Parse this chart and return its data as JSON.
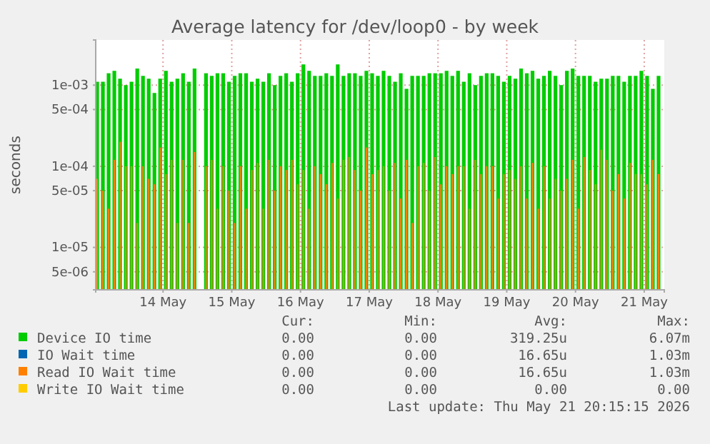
{
  "chart_data": {
    "type": "bar",
    "title": "Average latency for /dev/loop0 - by week",
    "ylabel": "seconds",
    "log": true,
    "grid": true,
    "legend": "bottom",
    "x": [
      "2026-05-13T01:00",
      "2026-05-13T03:00",
      "2026-05-13T05:00",
      "2026-05-13T07:00",
      "2026-05-13T09:00",
      "2026-05-13T11:00",
      "2026-05-13T13:00",
      "2026-05-13T15:00",
      "2026-05-13T17:00",
      "2026-05-13T19:00",
      "2026-05-13T21:00",
      "2026-05-13T23:00",
      "2026-05-14T01:00",
      "2026-05-14T03:00",
      "2026-05-14T05:00",
      "2026-05-14T07:00",
      "2026-05-14T09:00",
      "2026-05-14T11:00",
      "2026-05-14T13:00",
      "2026-05-14T15:00",
      "2026-05-14T17:00",
      "2026-05-14T19:00",
      "2026-05-14T21:00",
      "2026-05-14T23:00",
      "2026-05-15T01:00",
      "2026-05-15T03:00",
      "2026-05-15T05:00",
      "2026-05-15T07:00",
      "2026-05-15T09:00",
      "2026-05-15T11:00",
      "2026-05-15T13:00",
      "2026-05-15T15:00",
      "2026-05-15T17:00",
      "2026-05-15T19:00",
      "2026-05-15T21:00",
      "2026-05-15T23:00",
      "2026-05-16T01:00",
      "2026-05-16T03:00",
      "2026-05-16T05:00",
      "2026-05-16T07:00",
      "2026-05-16T09:00",
      "2026-05-16T11:00",
      "2026-05-16T13:00",
      "2026-05-16T15:00",
      "2026-05-16T17:00",
      "2026-05-16T19:00",
      "2026-05-16T21:00",
      "2026-05-16T23:00",
      "2026-05-17T01:00",
      "2026-05-17T03:00",
      "2026-05-17T05:00",
      "2026-05-17T07:00",
      "2026-05-17T09:00",
      "2026-05-17T11:00",
      "2026-05-17T13:00",
      "2026-05-17T15:00",
      "2026-05-17T17:00",
      "2026-05-17T19:00",
      "2026-05-17T21:00",
      "2026-05-17T23:00",
      "2026-05-18T01:00",
      "2026-05-18T03:00",
      "2026-05-18T05:00",
      "2026-05-18T07:00",
      "2026-05-18T09:00",
      "2026-05-18T11:00",
      "2026-05-18T13:00",
      "2026-05-18T15:00",
      "2026-05-18T17:00",
      "2026-05-18T19:00",
      "2026-05-18T21:00",
      "2026-05-18T23:00",
      "2026-05-19T01:00",
      "2026-05-19T03:00",
      "2026-05-19T05:00",
      "2026-05-19T07:00",
      "2026-05-19T09:00",
      "2026-05-19T11:00",
      "2026-05-19T13:00",
      "2026-05-19T15:00",
      "2026-05-19T17:00",
      "2026-05-19T19:00",
      "2026-05-19T21:00",
      "2026-05-19T23:00",
      "2026-05-20T01:00",
      "2026-05-20T03:00",
      "2026-05-20T05:00",
      "2026-05-20T07:00",
      "2026-05-20T09:00",
      "2026-05-20T11:00",
      "2026-05-20T13:00",
      "2026-05-20T15:00",
      "2026-05-20T17:00",
      "2026-05-20T19:00",
      "2026-05-20T21:00",
      "2026-05-20T23:00",
      "2026-05-21T01:00",
      "2026-05-21T03:00",
      "2026-05-21T05:00"
    ],
    "xlim": [
      "2026-05-13T00:30",
      "2026-05-21T07:00"
    ],
    "xticks": [
      {
        "value": "2026-05-14",
        "label": "14 May"
      },
      {
        "value": "2026-05-15",
        "label": "15 May"
      },
      {
        "value": "2026-05-16",
        "label": "16 May"
      },
      {
        "value": "2026-05-17",
        "label": "17 May"
      },
      {
        "value": "2026-05-18",
        "label": "18 May"
      },
      {
        "value": "2026-05-19",
        "label": "19 May"
      },
      {
        "value": "2026-05-20",
        "label": "20 May"
      },
      {
        "value": "2026-05-21",
        "label": "21 May"
      }
    ],
    "ylim": [
      3e-06,
      0.0036
    ],
    "yticks": [
      {
        "value": 5e-06,
        "label": "5e-06"
      },
      {
        "value": 1e-05,
        "label": "1e-05"
      },
      {
        "value": 5e-05,
        "label": "5e-05"
      },
      {
        "value": 0.0001,
        "label": "1e-04"
      },
      {
        "value": 0.0005,
        "label": "5e-04"
      },
      {
        "value": 0.001,
        "label": "1e-03"
      }
    ],
    "series": [
      {
        "name": "Device IO time",
        "color": "#00cc00",
        "values": [
          0.0011,
          0.0011,
          0.0014,
          0.0015,
          0.0012,
          0.001,
          0.0011,
          0.0016,
          0.0013,
          0.0012,
          0.0008,
          0.0012,
          0.0015,
          0.0011,
          0.0012,
          0.0014,
          0.0011,
          0.0016,
          null,
          0.0014,
          0.0013,
          0.0014,
          0.0014,
          0.0011,
          0.0013,
          0.0014,
          0.0014,
          0.0011,
          0.0012,
          0.0011,
          0.0014,
          0.001,
          0.0013,
          0.0014,
          0.0011,
          0.0014,
          0.0018,
          0.0015,
          0.0013,
          0.0013,
          0.0014,
          0.0013,
          0.0018,
          0.0013,
          0.0014,
          0.0014,
          0.0013,
          0.0015,
          0.0014,
          0.0013,
          0.0015,
          0.0013,
          0.0011,
          0.0014,
          0.0009,
          0.0013,
          0.0013,
          0.0013,
          0.0014,
          0.0014,
          0.0014,
          0.0015,
          0.0013,
          0.0015,
          0.0011,
          0.0014,
          0.001,
          0.0013,
          0.0014,
          0.0014,
          0.0013,
          0.0011,
          0.0013,
          0.0012,
          0.0016,
          0.0014,
          0.0015,
          0.0012,
          0.0013,
          0.0015,
          0.0013,
          0.001,
          0.0015,
          0.0016,
          0.0013,
          0.0013,
          0.0013,
          0.0011,
          0.0012,
          0.0012,
          0.0013,
          0.0013,
          0.0011,
          0.0013,
          0.0013,
          0.0015,
          0.0013,
          0.0009,
          0.0013
        ]
      },
      {
        "name": "IO Wait time",
        "color": "#0066b3",
        "values": [
          null,
          null,
          null,
          null,
          null,
          null,
          null,
          null,
          null,
          null,
          null,
          null,
          null,
          null,
          null,
          null,
          null,
          null,
          null,
          null,
          null,
          null,
          null,
          null,
          null,
          null,
          null,
          null,
          null,
          null,
          null,
          null,
          null,
          null,
          null,
          null,
          null,
          null,
          null,
          null,
          null,
          null,
          null,
          null,
          null,
          null,
          null,
          null,
          null,
          null,
          null,
          null,
          null,
          null,
          null,
          null,
          null,
          null,
          null,
          null,
          null,
          null,
          null,
          null,
          null,
          null,
          null,
          null,
          null,
          null,
          null,
          null,
          null,
          null,
          null,
          null,
          null,
          null,
          null,
          null,
          null,
          null,
          null,
          null,
          null,
          null,
          null,
          null,
          null,
          null,
          null,
          null,
          null,
          null,
          null,
          null,
          null,
          null,
          null
        ]
      },
      {
        "name": "Read IO Wait time",
        "color": "#ff8000",
        "values": [
          7e-05,
          5e-05,
          3e-05,
          0.00012,
          0.0002,
          0.0001,
          0.0001,
          2e-05,
          0.0001,
          7e-05,
          6e-05,
          0.00017,
          8e-05,
          0.00012,
          2e-05,
          0.00012,
          2e-05,
          0.00015,
          null,
          0.0001,
          0.00012,
          3e-05,
          0.0001,
          5e-05,
          2e-05,
          0.0001,
          3e-05,
          9e-05,
          0.00011,
          3e-05,
          0.00012,
          5e-05,
          0.0001,
          9e-05,
          0.00012,
          6e-05,
          9e-05,
          3e-05,
          0.0001,
          8e-05,
          6e-05,
          0.00011,
          4e-05,
          0.00012,
          0.00013,
          9e-05,
          5e-05,
          0.00017,
          8e-05,
          9e-05,
          0.0001,
          5e-05,
          0.00011,
          4e-05,
          0.00012,
          2e-05,
          0.0001,
          0.00011,
          5e-05,
          0.00013,
          6e-05,
          0.0001,
          8e-05,
          0.0001,
          0.0001,
          3e-05,
          0.00012,
          8e-05,
          0.0001,
          0.0001,
          4e-05,
          8e-05,
          9e-05,
          7e-05,
          0.0001,
          4e-05,
          0.00011,
          3e-05,
          0.0001,
          4e-05,
          7e-05,
          5e-05,
          7e-05,
          0.00012,
          3e-05,
          0.00013,
          9e-05,
          6e-05,
          0.00016,
          0.00012,
          5e-05,
          8e-05,
          4e-05,
          0.00011,
          8e-05,
          8e-05,
          6e-05,
          0.00012,
          8e-05
        ]
      },
      {
        "name": "Write IO Wait time",
        "color": "#ffcc00",
        "values": [
          null,
          null,
          null,
          null,
          null,
          null,
          null,
          null,
          null,
          null,
          null,
          null,
          null,
          null,
          null,
          null,
          null,
          null,
          null,
          null,
          null,
          null,
          null,
          null,
          null,
          null,
          null,
          null,
          null,
          null,
          null,
          null,
          null,
          null,
          null,
          null,
          null,
          null,
          null,
          null,
          null,
          null,
          null,
          null,
          null,
          null,
          null,
          null,
          null,
          null,
          null,
          null,
          null,
          null,
          null,
          null,
          null,
          null,
          null,
          null,
          null,
          null,
          null,
          null,
          null,
          null,
          null,
          null,
          null,
          null,
          null,
          null,
          null,
          null,
          null,
          null,
          null,
          null,
          null,
          null,
          null,
          null,
          null,
          null,
          null,
          null,
          null,
          null,
          null,
          null,
          null,
          null,
          null,
          null,
          null,
          null,
          null,
          null,
          null
        ]
      }
    ],
    "annotations": [
      "Cur:",
      "Min:",
      "Avg:",
      "Max:",
      "0.00",
      "0.00",
      "319.25u",
      "6.07m",
      "0.00",
      "0.00",
      "16.65u",
      "1.03m",
      "0.00",
      "0.00",
      "16.65u",
      "1.03m",
      "0.00",
      "0.00",
      "0.00",
      "0.00",
      "Last update: Thu May 21 20:15:15 2026"
    ]
  }
}
